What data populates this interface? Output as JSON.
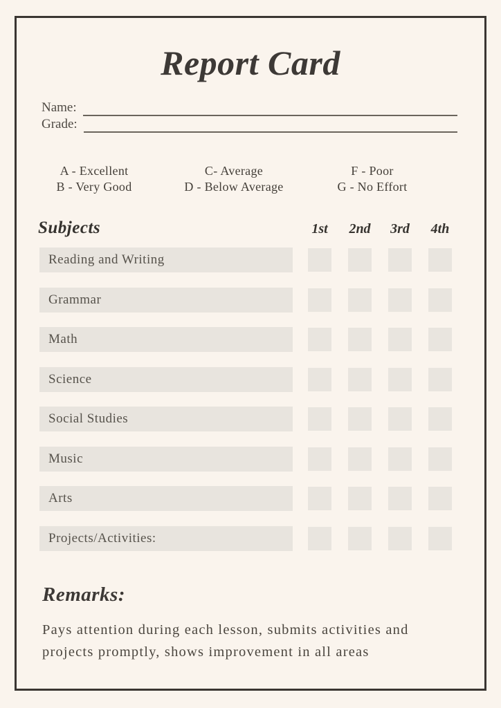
{
  "colors": {
    "background": "#faf4ed",
    "frame_border": "#3a3632",
    "heading_text": "#3d3936",
    "body_text": "#4b463f",
    "field_line": "#6a645c",
    "subject_bar": "#e8e4de",
    "grade_cell": "#e9e5df"
  },
  "header": {
    "title": "Report Card"
  },
  "fields": {
    "name_label": "Name:",
    "name_value": "",
    "grade_label": "Grade:",
    "grade_value": ""
  },
  "legend": {
    "columns": [
      {
        "lines": [
          "A - Excellent",
          "B - Very Good"
        ]
      },
      {
        "lines": [
          "C- Average",
          "D - Below Average"
        ]
      },
      {
        "lines": [
          "F - Poor",
          "G - No Effort"
        ]
      }
    ]
  },
  "table": {
    "subjects_label": "Subjects",
    "quarters": [
      "1st",
      "2nd",
      "3rd",
      "4th"
    ],
    "rows": [
      "Reading and Writing",
      "Grammar",
      "Math",
      "Science",
      "Social Studies",
      "Music",
      "Arts",
      "Projects/Activities:"
    ]
  },
  "remarks": {
    "heading": "Remarks:",
    "lines": [
      "Pays attention during each lesson, submits activities and",
      "projects promptly, shows improvement in all areas"
    ]
  }
}
